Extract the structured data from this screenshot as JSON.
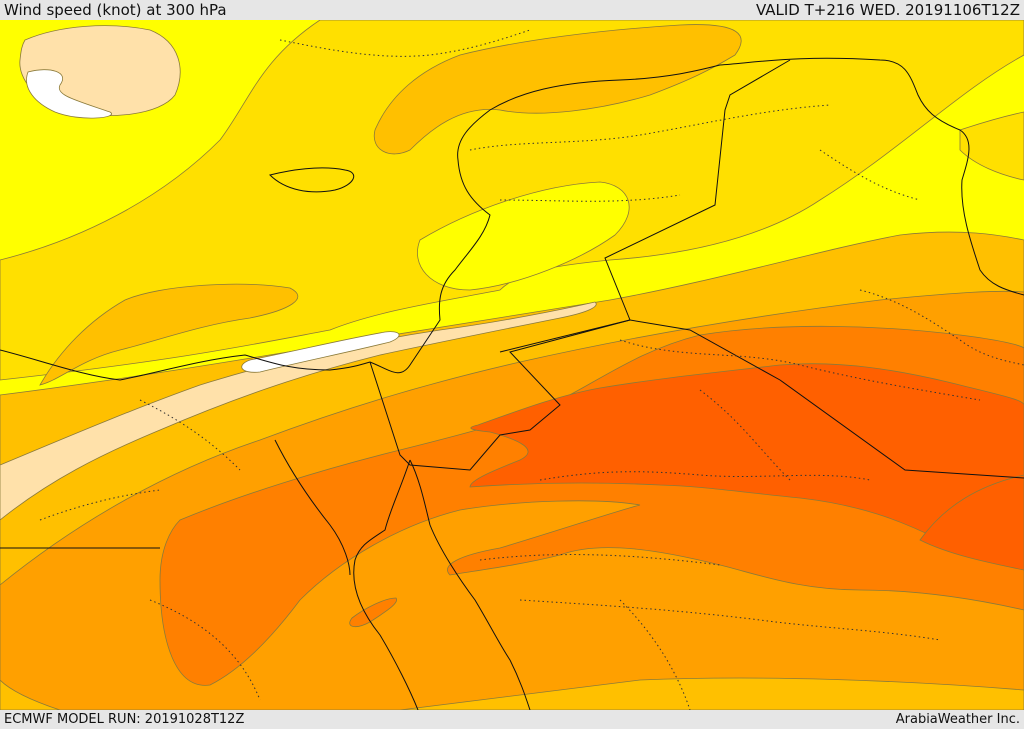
{
  "header": {
    "title": "Wind speed (knot) at 300 hPa",
    "valid": "VALID T+216 WED. 20191106T12Z"
  },
  "footer": {
    "model_run": "ECMWF MODEL RUN: 20191028T12Z",
    "credit": "ArabiaWeather Inc."
  },
  "palette": {
    "bg_bar": "#e6e6e6",
    "white_band": "#ffffff",
    "peach": "#ffe1aa",
    "yellow": "#ffff00",
    "gold": "#ffe000",
    "amber": "#ffc000",
    "orange": "#ffa000",
    "dark_orange": "#ff8000",
    "red_orange": "#ff6000"
  }
}
